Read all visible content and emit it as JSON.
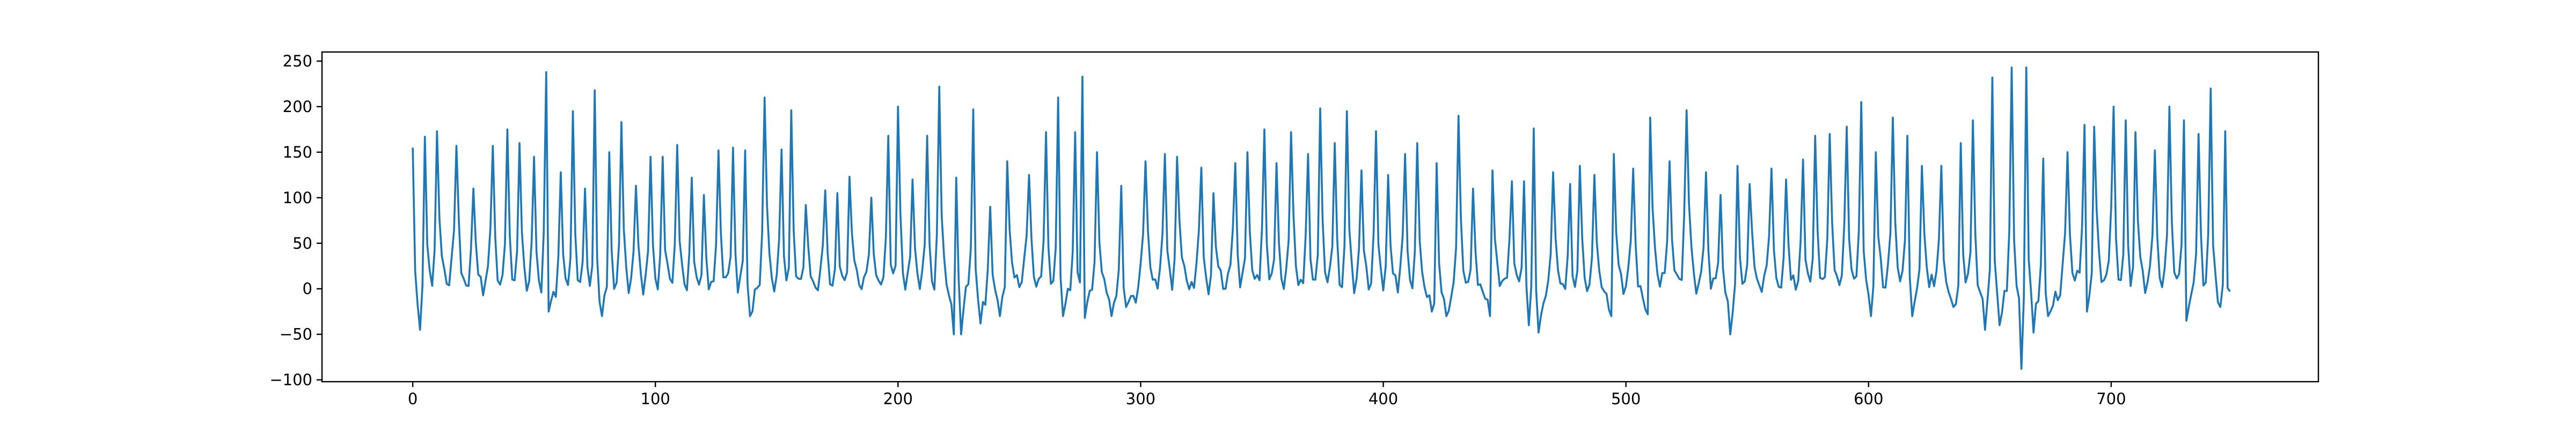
{
  "chart_data": {
    "type": "line",
    "title": "",
    "xlabel": "",
    "ylabel": "",
    "xlim": [
      -37.4,
      785.4
    ],
    "ylim": [
      -102,
      260
    ],
    "x_ticks": [
      0,
      100,
      200,
      300,
      400,
      500,
      600,
      700
    ],
    "y_ticks": [
      -100,
      -50,
      0,
      50,
      100,
      150,
      200,
      250
    ],
    "x_tick_labels": [
      "0",
      "100",
      "200",
      "300",
      "400",
      "500",
      "600",
      "700"
    ],
    "y_tick_labels": [
      "−100",
      "−50",
      "0",
      "50",
      "100",
      "150",
      "200",
      "250"
    ],
    "grid": false,
    "legend": "none",
    "series": [
      {
        "color": "#1f77b4",
        "x_start": 0,
        "x_step": 1,
        "peaks": [
          [
            0,
            155
          ],
          [
            5,
            167
          ],
          [
            10,
            173
          ],
          [
            18,
            157
          ],
          [
            25,
            110
          ],
          [
            33,
            157
          ],
          [
            39,
            175
          ],
          [
            44,
            160
          ],
          [
            50,
            145
          ],
          [
            55,
            238
          ],
          [
            61,
            128
          ],
          [
            66,
            195
          ],
          [
            71,
            110
          ],
          [
            75,
            218
          ],
          [
            81,
            150
          ],
          [
            86,
            183
          ],
          [
            92,
            113
          ],
          [
            98,
            145
          ],
          [
            103,
            145
          ],
          [
            109,
            158
          ],
          [
            115,
            122
          ],
          [
            120,
            103
          ],
          [
            126,
            152
          ],
          [
            132,
            155
          ],
          [
            137,
            152
          ],
          [
            145,
            210
          ],
          [
            152,
            153
          ],
          [
            156,
            196
          ],
          [
            162,
            92
          ],
          [
            170,
            108
          ],
          [
            175,
            105
          ],
          [
            180,
            123
          ],
          [
            189,
            100
          ],
          [
            196,
            168
          ],
          [
            200,
            200
          ],
          [
            206,
            120
          ],
          [
            212,
            168
          ],
          [
            217,
            222
          ],
          [
            224,
            122
          ],
          [
            231,
            197
          ],
          [
            238,
            90
          ],
          [
            245,
            140
          ],
          [
            254,
            125
          ],
          [
            261,
            172
          ],
          [
            266,
            210
          ],
          [
            273,
            172
          ],
          [
            276,
            233
          ],
          [
            282,
            150
          ],
          [
            292,
            113
          ],
          [
            302,
            140
          ],
          [
            310,
            148
          ],
          [
            315,
            145
          ],
          [
            325,
            133
          ],
          [
            330,
            105
          ],
          [
            339,
            138
          ],
          [
            344,
            150
          ],
          [
            351,
            175
          ],
          [
            356,
            138
          ],
          [
            362,
            172
          ],
          [
            369,
            148
          ],
          [
            374,
            198
          ],
          [
            380,
            160
          ],
          [
            385,
            195
          ],
          [
            391,
            130
          ],
          [
            397,
            173
          ],
          [
            402,
            125
          ],
          [
            409,
            148
          ],
          [
            414,
            160
          ],
          [
            422,
            138
          ],
          [
            431,
            190
          ],
          [
            437,
            110
          ],
          [
            445,
            130
          ],
          [
            453,
            118
          ],
          [
            458,
            118
          ],
          [
            462,
            176
          ],
          [
            470,
            128
          ],
          [
            477,
            115
          ],
          [
            481,
            135
          ],
          [
            487,
            125
          ],
          [
            495,
            148
          ],
          [
            503,
            132
          ],
          [
            510,
            188
          ],
          [
            518,
            140
          ],
          [
            525,
            196
          ],
          [
            533,
            128
          ],
          [
            539,
            103
          ],
          [
            546,
            135
          ],
          [
            551,
            115
          ],
          [
            560,
            132
          ],
          [
            566,
            120
          ],
          [
            573,
            142
          ],
          [
            578,
            168
          ],
          [
            584,
            170
          ],
          [
            591,
            178
          ],
          [
            597,
            205
          ],
          [
            603,
            150
          ],
          [
            610,
            188
          ],
          [
            616,
            168
          ],
          [
            622,
            135
          ],
          [
            630,
            135
          ],
          [
            638,
            160
          ],
          [
            643,
            185
          ],
          [
            651,
            232
          ],
          [
            659,
            243
          ],
          [
            665,
            243
          ],
          [
            672,
            143
          ],
          [
            682,
            150
          ],
          [
            689,
            180
          ],
          [
            693,
            178
          ],
          [
            701,
            200
          ],
          [
            706,
            185
          ],
          [
            710,
            172
          ],
          [
            718,
            152
          ],
          [
            724,
            200
          ],
          [
            730,
            185
          ],
          [
            736,
            170
          ],
          [
            741,
            220
          ],
          [
            747,
            173
          ]
        ],
        "troughs": [
          [
            3,
            -45
          ],
          [
            56,
            -25
          ],
          [
            78,
            -30
          ],
          [
            139,
            -30
          ],
          [
            152,
            -28
          ],
          [
            223,
            -50
          ],
          [
            226,
            -50
          ],
          [
            234,
            -38
          ],
          [
            242,
            -30
          ],
          [
            268,
            -30
          ],
          [
            277,
            -32
          ],
          [
            288,
            -30
          ],
          [
            294,
            -20
          ],
          [
            420,
            -25
          ],
          [
            426,
            -30
          ],
          [
            444,
            -30
          ],
          [
            460,
            -40
          ],
          [
            464,
            -48
          ],
          [
            494,
            -30
          ],
          [
            509,
            -28
          ],
          [
            543,
            -50
          ],
          [
            601,
            -30
          ],
          [
            618,
            -30
          ],
          [
            635,
            -20
          ],
          [
            648,
            -45
          ],
          [
            654,
            -40
          ],
          [
            663,
            -88
          ],
          [
            668,
            -48
          ],
          [
            674,
            -30
          ],
          [
            690,
            -25
          ],
          [
            718,
            -28
          ],
          [
            731,
            -35
          ],
          [
            745,
            -20
          ]
        ]
      }
    ]
  }
}
